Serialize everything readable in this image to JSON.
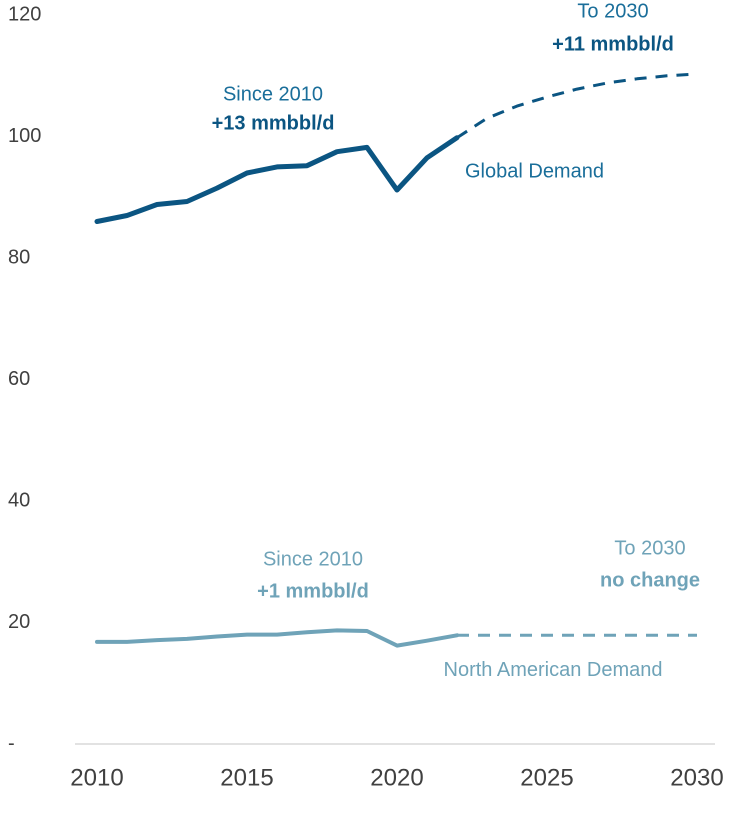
{
  "chart_data": {
    "type": "line",
    "x": [
      2010,
      2011,
      2012,
      2013,
      2014,
      2015,
      2016,
      2017,
      2018,
      2019,
      2020,
      2021,
      2022,
      2023,
      2024,
      2025,
      2026,
      2027,
      2028,
      2029,
      2030
    ],
    "series": [
      {
        "name": "Global Demand",
        "color": "#0b5582",
        "values": [
          86,
          87,
          88.8,
          89.3,
          91.5,
          94,
          95,
          95.2,
          97.5,
          98.2,
          91.2,
          96.5,
          99.8,
          null,
          null,
          null,
          null,
          null,
          null,
          null,
          null
        ],
        "projection": [
          null,
          null,
          null,
          null,
          null,
          null,
          null,
          null,
          null,
          null,
          null,
          null,
          99.8,
          103,
          105,
          106.5,
          107.8,
          108.8,
          109.5,
          110,
          110.3
        ]
      },
      {
        "name": "North American Demand",
        "color": "#6fa3b8",
        "values": [
          16.8,
          16.8,
          17.1,
          17.3,
          17.7,
          18,
          18,
          18.4,
          18.7,
          18.6,
          16.2,
          17,
          17.9,
          null,
          null,
          null,
          null,
          null,
          null,
          null,
          null
        ],
        "projection": [
          null,
          null,
          null,
          null,
          null,
          null,
          null,
          null,
          null,
          null,
          null,
          null,
          17.9,
          17.9,
          17.9,
          17.9,
          17.9,
          17.9,
          17.9,
          17.9,
          17.9
        ]
      }
    ],
    "annotations": [
      "Since 2010",
      "+13 mmbbl/d",
      "To 2030",
      "+11 mmbbl/d",
      "Since 2010",
      "+1 mmbbl/d",
      "To 2030",
      "no change"
    ],
    "xlim": [
      2010,
      2030
    ],
    "xticks": [
      2010,
      2015,
      2020,
      2025,
      2030
    ],
    "ylim": [
      0,
      120
    ],
    "yticks": [
      {
        "value": 0,
        "label": "-"
      },
      20,
      40,
      60,
      80,
      100,
      120
    ],
    "grid": false
  }
}
